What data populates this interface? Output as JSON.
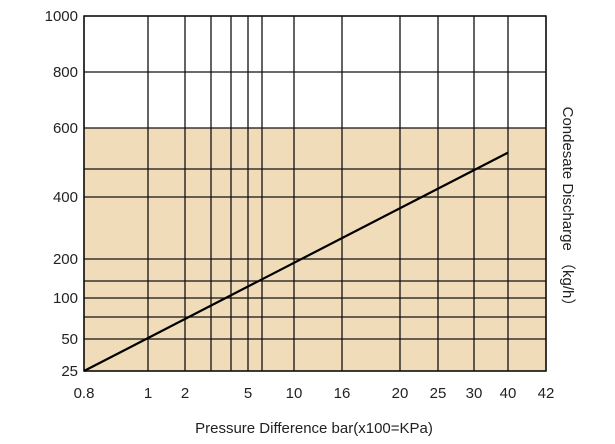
{
  "chart_data": {
    "type": "line",
    "title": "",
    "xlabel": "Pressure Difference bar(x100=KPa)",
    "ylabel": "Condesate Discharge  （kg/h）",
    "x_ticks": [
      "0.8",
      "1",
      "2",
      "5",
      "10",
      "16",
      "20",
      "25",
      "30",
      "40",
      "42"
    ],
    "y_ticks": [
      "25",
      "50",
      "100",
      "200",
      "400",
      "600",
      "800",
      "1000"
    ],
    "x_gridlines": [
      "0.8",
      "1",
      "2",
      "3",
      "4",
      "5",
      "6",
      "10",
      "16",
      "20",
      "25",
      "30",
      "40",
      "42"
    ],
    "y_gridlines": [
      "25",
      "50",
      "75",
      "100",
      "150",
      "200",
      "400",
      "500",
      "600",
      "800",
      "1000"
    ],
    "shaded_region": {
      "y_from": 25,
      "y_to": 600,
      "x_from": 0.8,
      "x_to": 42,
      "color": "#f0dcb8"
    },
    "grid": true,
    "series": [
      {
        "x": [
          0.8,
          40
        ],
        "y": [
          25,
          540
        ],
        "color": "#000000"
      }
    ]
  }
}
